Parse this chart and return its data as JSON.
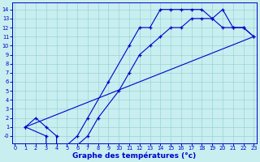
{
  "bg_color": "#c8eef0",
  "line_color": "#0000cc",
  "xlabel": "Graphe des températures (°c)",
  "xlim_min": -0.3,
  "xlim_max": 23.3,
  "ylim_min": -0.8,
  "ylim_max": 14.8,
  "xticks": [
    0,
    1,
    2,
    3,
    4,
    5,
    6,
    7,
    8,
    9,
    10,
    11,
    12,
    13,
    14,
    15,
    16,
    17,
    18,
    19,
    20,
    21,
    22,
    23
  ],
  "yticks": [
    0,
    1,
    2,
    3,
    4,
    5,
    6,
    7,
    8,
    9,
    10,
    11,
    12,
    13,
    14
  ],
  "ytick_labels": [
    "-0",
    "1",
    "2",
    "3",
    "4",
    "5",
    "6",
    "7",
    "8",
    "9",
    "10",
    "11",
    "12",
    "13",
    "14"
  ],
  "line1_x": [
    1,
    2,
    3,
    4,
    4,
    5,
    6,
    7,
    8,
    10,
    11,
    12,
    13,
    14,
    15,
    16,
    17,
    18,
    19,
    20,
    21,
    22,
    23
  ],
  "line1_y": [
    1,
    2,
    1,
    0,
    -1,
    -1,
    -1,
    0,
    2,
    5,
    7,
    9,
    10,
    11,
    12,
    12,
    13,
    13,
    13,
    12,
    12,
    12,
    11
  ],
  "line2_x": [
    1,
    3,
    3,
    4,
    5,
    6,
    7,
    9,
    11,
    12,
    13,
    14,
    15,
    16,
    17,
    18,
    19,
    20,
    21,
    22,
    23
  ],
  "line2_y": [
    1,
    0,
    -1,
    -1,
    -1,
    0,
    2,
    6,
    10,
    12,
    12,
    14,
    14,
    14,
    14,
    14,
    13,
    14,
    12,
    12,
    11
  ],
  "line3_x": [
    1,
    23
  ],
  "line3_y": [
    1,
    11
  ]
}
